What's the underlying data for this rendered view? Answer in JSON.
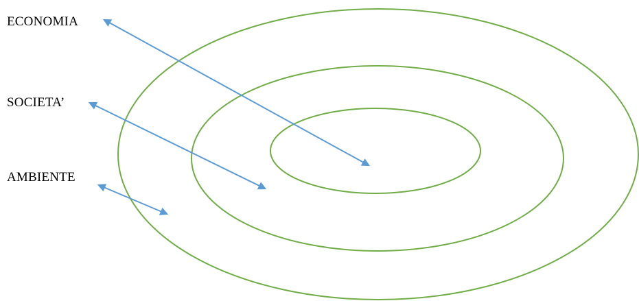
{
  "labels": {
    "economia": "ECONOMIA",
    "societa": "SOCIETA’",
    "ambiente": "AMBIENTE"
  },
  "colors": {
    "ring": "#70ad47",
    "arrow": "#5b9bd5",
    "text": "#000000"
  }
}
